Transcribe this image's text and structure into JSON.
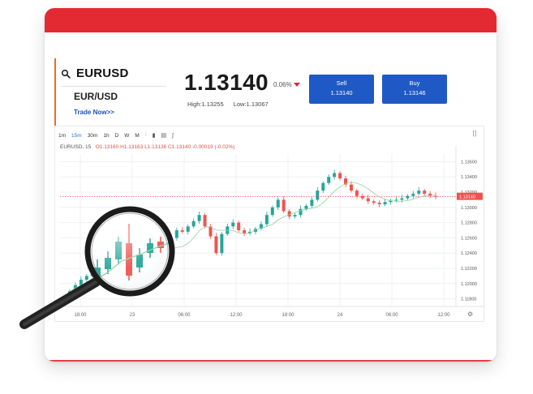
{
  "instrument": {
    "symbol": "EURUSD",
    "pair": "EUR/USD",
    "trade_now": "Trade Now>>"
  },
  "quote": {
    "price": "1.13140",
    "change": "0.06%",
    "high": "High:1.13255",
    "low": "Low:1.13067"
  },
  "buttons": {
    "sell_label": "Sell",
    "sell_price": "1.13140",
    "buy_label": "Buy",
    "buy_price": "1.13146"
  },
  "toolbar": {
    "timeframes": [
      "1m",
      "15m",
      "30m",
      "1h",
      "D",
      "W",
      "M"
    ],
    "active": "15m"
  },
  "legend": {
    "name": "EURUSD, 15",
    "values": "O1.13160 H1.13163 L1.13136 C1.13140 -0.00019 (-0.02%)"
  },
  "colors": {
    "accent_red": "#e32a33",
    "button_blue": "#1f59c6",
    "up": "#26a69a",
    "down": "#ef5350",
    "ma": "#8fd19e"
  },
  "chart_data": {
    "type": "candlestick",
    "y_ticks": [
      "1.13600",
      "1.13400",
      "1.13200",
      "1.13000",
      "1.12800",
      "1.12600",
      "1.12400",
      "1.12200",
      "1.12000",
      "1.11800"
    ],
    "x_ticks": [
      "18:00",
      "23",
      "06:00",
      "12:00",
      "18:00",
      "24",
      "06:00",
      "12:00"
    ],
    "ylim": [
      1.117,
      1.137
    ],
    "last_price_label": "1.13140",
    "closes": [
      1.119,
      1.1198,
      1.1205,
      1.121,
      1.1215,
      1.12,
      1.1212,
      1.1222,
      1.1218,
      1.123,
      1.124,
      1.1235,
      1.1252,
      1.126,
      1.1245,
      1.1232,
      1.1225,
      1.124,
      1.126,
      1.127,
      1.1268,
      1.1275,
      1.1282,
      1.129,
      1.1275,
      1.1262,
      1.124,
      1.1265,
      1.1275,
      1.128,
      1.127,
      1.1266,
      1.1268,
      1.1272,
      1.1278,
      1.129,
      1.13,
      1.131,
      1.1295,
      1.1288,
      1.129,
      1.1298,
      1.1302,
      1.131,
      1.1322,
      1.1332,
      1.134,
      1.1345,
      1.1338,
      1.133,
      1.1322,
      1.1315,
      1.1312,
      1.1308,
      1.1306,
      1.1304,
      1.1307,
      1.1309,
      1.131,
      1.1312,
      1.1315,
      1.1318,
      1.1322,
      1.1318,
      1.1315,
      1.1314
    ]
  }
}
